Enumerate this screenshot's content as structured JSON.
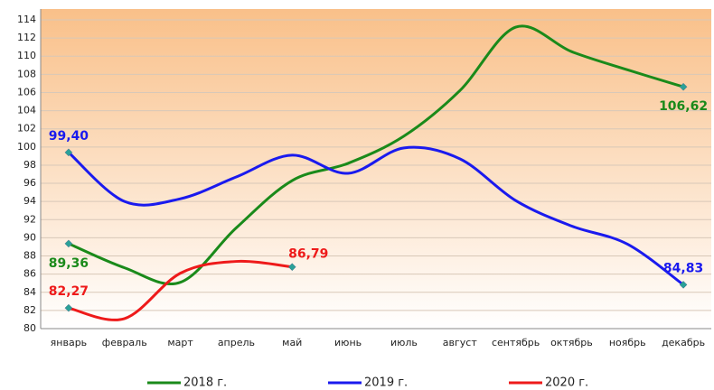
{
  "chart_data": {
    "type": "line",
    "categories": [
      "январь",
      "февраль",
      "март",
      "апрель",
      "май",
      "июнь",
      "июль",
      "август",
      "сентябрь",
      "октябрь",
      "ноябрь",
      "декабрь"
    ],
    "series": [
      {
        "name": "2018 г.",
        "color": "#1a8a1a",
        "values": [
          89.36,
          86.7,
          85.1,
          91.1,
          96.3,
          98.2,
          101.2,
          106.2,
          113.2,
          110.5,
          108.5,
          106.62
        ],
        "value_labels": [
          "89,36",
          null,
          null,
          null,
          null,
          null,
          null,
          null,
          null,
          null,
          null,
          "106,62"
        ]
      },
      {
        "name": "2019 г.",
        "color": "#1a1aee",
        "values": [
          99.4,
          94.0,
          94.3,
          96.7,
          99.1,
          97.1,
          99.9,
          98.7,
          94.1,
          91.3,
          89.3,
          84.83
        ],
        "value_labels": [
          "99,40",
          null,
          null,
          null,
          null,
          null,
          null,
          null,
          null,
          null,
          null,
          "84,83"
        ]
      },
      {
        "name": "2020 г.",
        "color": "#ee1a1a",
        "values": [
          82.27,
          81.1,
          86.1,
          87.4,
          86.79,
          null,
          null,
          null,
          null,
          null,
          null,
          null
        ],
        "value_labels": [
          "82,27",
          null,
          null,
          null,
          "86,79",
          null,
          null,
          null,
          null,
          null,
          null,
          null
        ]
      }
    ],
    "ylim": [
      80,
      114
    ],
    "yticks": [
      80,
      82,
      84,
      86,
      88,
      90,
      92,
      94,
      96,
      98,
      100,
      102,
      104,
      106,
      108,
      110,
      112,
      114
    ],
    "grid": true,
    "legend": "bottom",
    "smooth": true
  }
}
